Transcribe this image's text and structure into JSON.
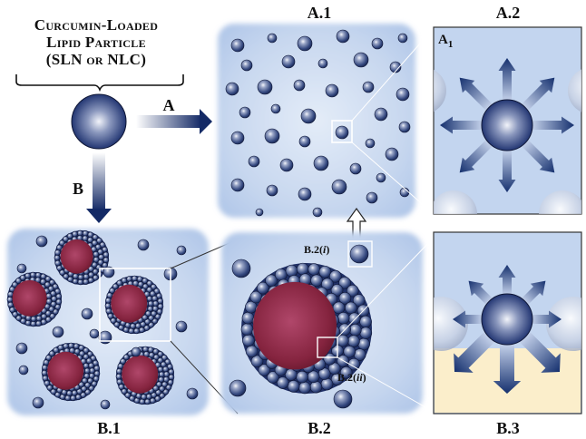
{
  "title": {
    "line1": "Curcumin-Loaded",
    "line2": "Lipid Particle",
    "line3": "(SLN or NLC)"
  },
  "labels": {
    "arrow_a": "A",
    "arrow_b": "B",
    "panel_a1": "A.1",
    "panel_a2": "A.2",
    "panel_b1": "B.1",
    "panel_b2": "B.2",
    "panel_b3": "B.3",
    "inset_a1_main": "A",
    "inset_a1_sub": "1",
    "b2i_main": "B.2(",
    "b2i_ital": "i",
    "b2i_end": ")",
    "b2ii_main": "B.2(",
    "b2ii_ital": "ii",
    "b2ii_end": ")"
  },
  "colors": {
    "panel_blue": "#bfd3ee",
    "sphere_dark": "#1b2a5c",
    "arrow_navy": "#1c3473",
    "core_red": "#8b2a4a",
    "cream": "#fbeecb"
  }
}
